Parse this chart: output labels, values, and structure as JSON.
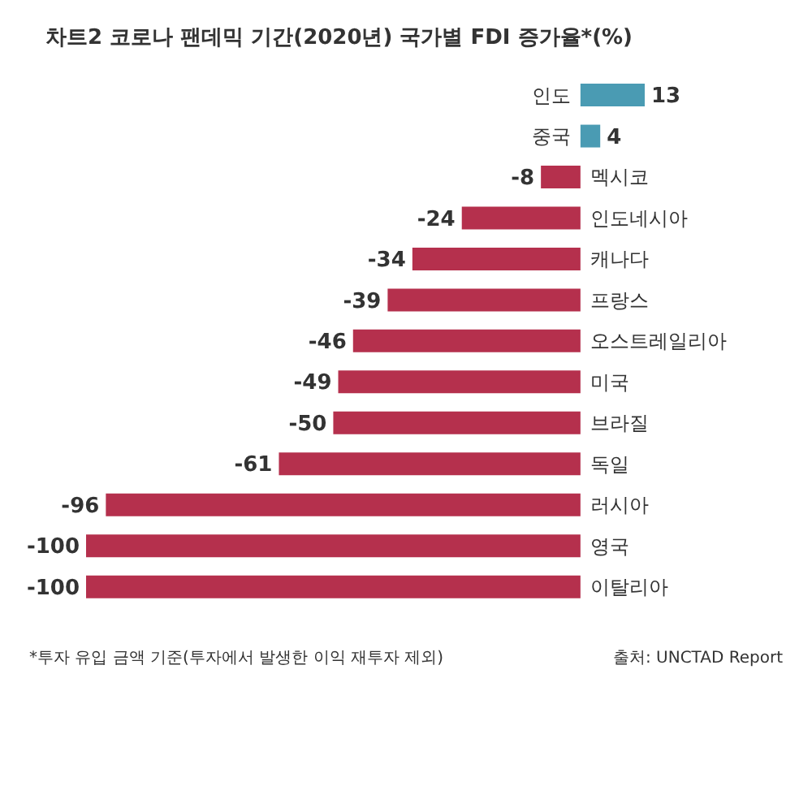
{
  "chart_data": {
    "type": "bar",
    "orientation": "horizontal",
    "title": "차트2 코로나 팬데믹 기간(2020년) 국가별 FDI 증가율*(%)",
    "categories": [
      "인도",
      "중국",
      "멕시코",
      "인도네시아",
      "캐나다",
      "프랑스",
      "오스트레일리아",
      "미국",
      "브라질",
      "독일",
      "러시아",
      "영국",
      "이탈리아"
    ],
    "values": [
      13,
      4,
      -8,
      -24,
      -34,
      -39,
      -46,
      -49,
      -50,
      -61,
      -96,
      -100,
      -100
    ],
    "colors": [
      "#4a9bb3",
      "#4a9bb3",
      "#b5304d",
      "#b5304d",
      "#b5304d",
      "#b5304d",
      "#b5304d",
      "#b5304d",
      "#b5304d",
      "#b5304d",
      "#b5304d",
      "#b5304d",
      "#b5304d"
    ],
    "data_labels": true,
    "annotations": [
      "*투자 유입 금액 기준(투자에서 발생한 이익 재투자 제외)",
      "출처: UNCTAD Report"
    ]
  }
}
